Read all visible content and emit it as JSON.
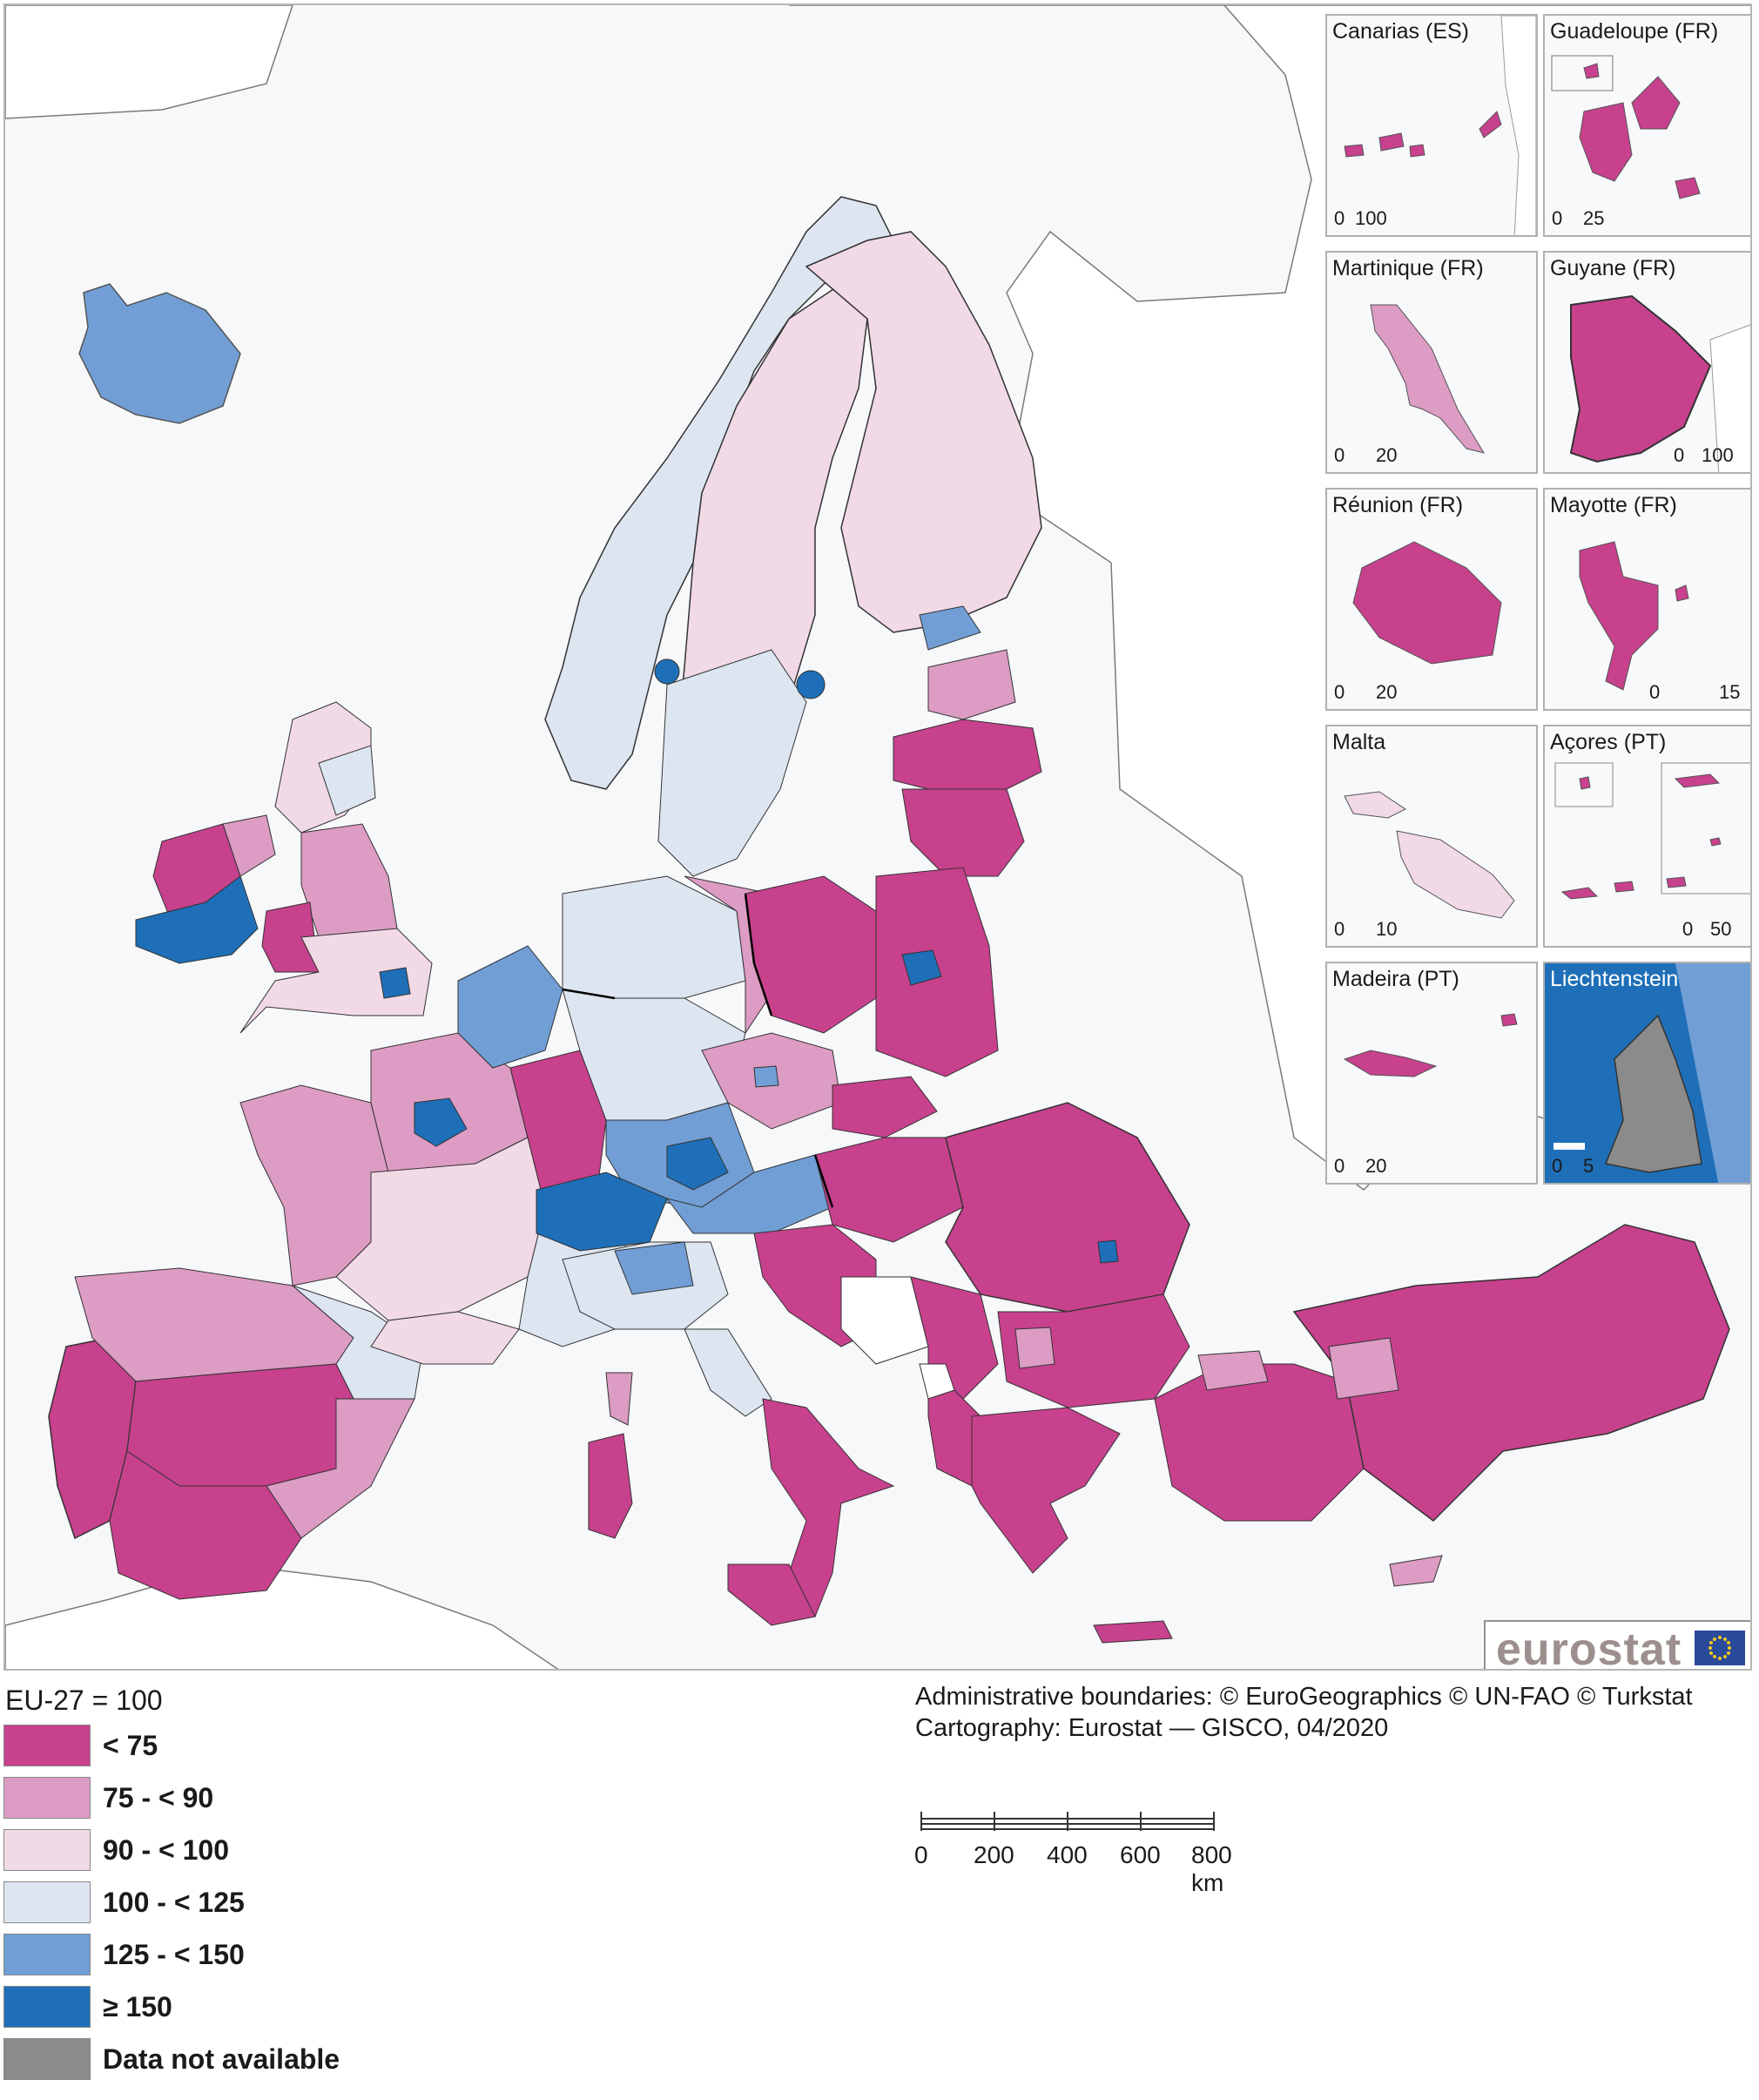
{
  "map": {
    "legend": {
      "title": "EU-27 = 100",
      "classes": [
        {
          "label": "< 75",
          "color": "#c7418d"
        },
        {
          "label": "75 - < 90",
          "color": "#dc9cc3"
        },
        {
          "label": "90 - < 100",
          "color": "#f1d9e6"
        },
        {
          "label": "100 - < 125",
          "color": "#dde5f1"
        },
        {
          "label": "125 - < 150",
          "color": "#719ed5"
        },
        {
          "label": "≥ 150",
          "color": "#1e6fb7"
        },
        {
          "label": "Data not available",
          "color": "#8b8b8b"
        }
      ]
    },
    "insets": [
      {
        "title": "Canarias (ES)",
        "scale": [
          "0",
          "100"
        ],
        "class": "< 75"
      },
      {
        "title": "Guadeloupe (FR)",
        "scale": [
          "0",
          "25"
        ],
        "class": "< 75"
      },
      {
        "title": "Martinique (FR)",
        "scale": [
          "0",
          "20"
        ],
        "class": "75 - < 90"
      },
      {
        "title": "Guyane (FR)",
        "scale": [
          "0",
          "100"
        ],
        "class": "< 75"
      },
      {
        "title": "Réunion (FR)",
        "scale": [
          "0",
          "20"
        ],
        "class": "< 75"
      },
      {
        "title": "Mayotte (FR)",
        "scale": [
          "0",
          "15"
        ],
        "class": "< 75"
      },
      {
        "title": "Malta",
        "scale": [
          "0",
          "10"
        ],
        "class": "90 - < 100"
      },
      {
        "title": "Açores (PT)",
        "scale": [
          "0",
          "50"
        ],
        "class": "< 75"
      },
      {
        "title": "Madeira (PT)",
        "scale": [
          "0",
          "20"
        ],
        "class": "< 75"
      },
      {
        "title": "Liechtenstein",
        "scale": [
          "0",
          "5"
        ],
        "class": "Data not available"
      }
    ],
    "credits": {
      "line1": "Administrative boundaries: © EuroGeographics © UN-FAO © Turkstat",
      "line2": "Cartography: Eurostat — GISCO, 04/2020"
    },
    "scalebar": {
      "ticks": [
        "0",
        "200",
        "400",
        "600",
        "800 km"
      ]
    },
    "logo": {
      "text": "eurostat"
    }
  }
}
